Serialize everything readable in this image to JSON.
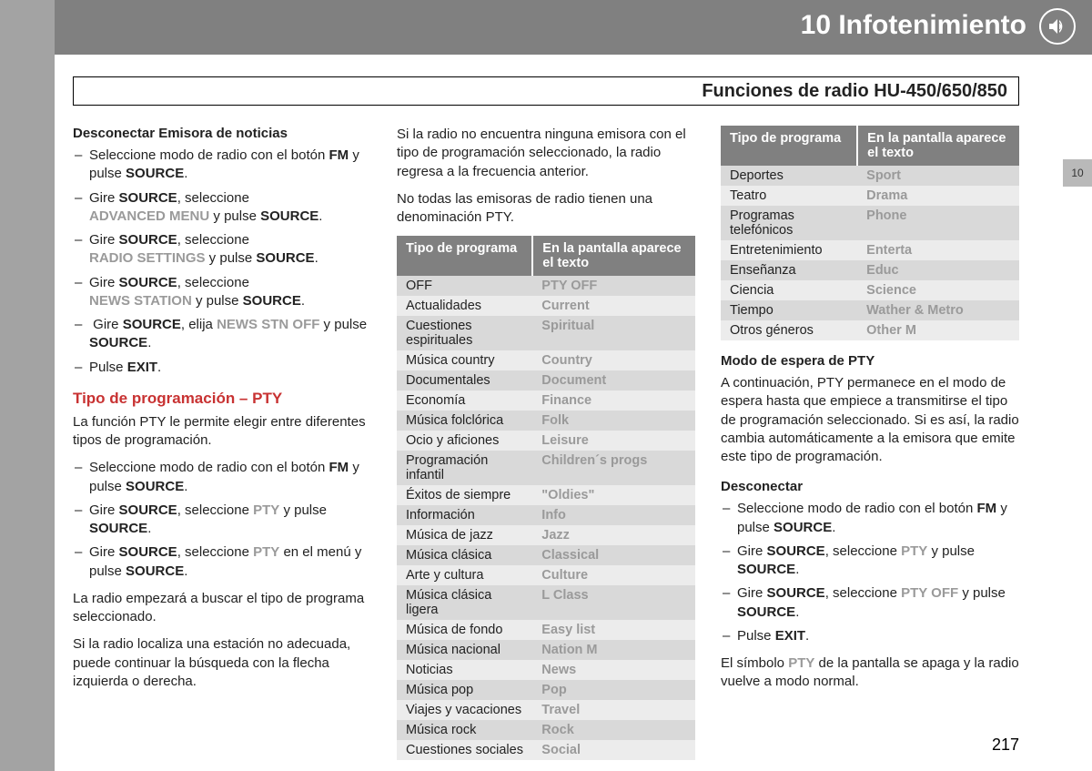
{
  "header": {
    "chapter": "10 Infotenimiento",
    "tab_label": "10"
  },
  "subtitle": "Funciones de radio HU-450/650/850",
  "page_number": "217",
  "table_headers": {
    "type": "Tipo de programa",
    "display": "En la pantalla aparece el texto"
  },
  "col1": {
    "h_disconnect_news": "Desconectar Emisora de noticias",
    "h_pty": "Tipo de programación – PTY",
    "p_pty_desc": "La función PTY le permite elegir entre diferentes tipos de programación.",
    "p_search": "La radio empezará a buscar el tipo de programa seleccionado.",
    "p_continue": "Si la radio localiza una estación no adecuada, puede continuar la búsqueda con la flecha izquierda o derecha."
  },
  "col2": {
    "p_no_match": "Si la radio no encuentra ninguna emisora con el tipo de programación seleccionado, la radio regresa a la frecuencia anterior.",
    "p_not_all": "No todas las emisoras de radio tienen una denominación PTY."
  },
  "col3": {
    "h_standby": "Modo de espera de PTY",
    "p_standby": "A continuación, PTY permanece en el modo de espera hasta que empiece a transmitirse el tipo de programación seleccionado. Si es así, la radio cambia automáticamente a la emisora que emite este tipo de programación.",
    "h_disconnect": "Desconectar"
  },
  "pty_main": [
    {
      "t": "OFF",
      "d": "PTY OFF"
    },
    {
      "t": "Actualidades",
      "d": "Current"
    },
    {
      "t": "Cuestiones espirituales",
      "d": "Spiritual"
    },
    {
      "t": "Música country",
      "d": "Country"
    },
    {
      "t": "Documentales",
      "d": "Document"
    },
    {
      "t": "Economía",
      "d": "Finance"
    },
    {
      "t": "Música folclórica",
      "d": "Folk"
    },
    {
      "t": "Ocio y aficiones",
      "d": "Leisure"
    },
    {
      "t": "Programación infantil",
      "d": "Children´s progs"
    },
    {
      "t": "Éxitos de siempre",
      "d": "\"Oldies\""
    },
    {
      "t": "Información",
      "d": "Info"
    },
    {
      "t": "Música de jazz",
      "d": "Jazz"
    },
    {
      "t": "Música clásica",
      "d": "Classical"
    },
    {
      "t": "Arte y cultura",
      "d": "Culture"
    },
    {
      "t": "Música clásica ligera",
      "d": "L Class"
    },
    {
      "t": "Música de fondo",
      "d": "Easy list"
    },
    {
      "t": "Música nacional",
      "d": "Nation M"
    },
    {
      "t": "Noticias",
      "d": "News"
    },
    {
      "t": "Música pop",
      "d": "Pop"
    },
    {
      "t": "Viajes y vacaciones",
      "d": "Travel"
    },
    {
      "t": "Música rock",
      "d": "Rock"
    },
    {
      "t": "Cuestiones sociales",
      "d": "Social"
    }
  ],
  "pty_side": [
    {
      "t": "Deportes",
      "d": "Sport"
    },
    {
      "t": "Teatro",
      "d": "Drama"
    },
    {
      "t": "Programas telefónicos",
      "d": "Phone"
    },
    {
      "t": "Entretenimiento",
      "d": "Enterta"
    },
    {
      "t": "Enseñanza",
      "d": "Educ"
    },
    {
      "t": "Ciencia",
      "d": "Science"
    },
    {
      "t": "Tiempo",
      "d": "Wather & Metro"
    },
    {
      "t": "Otros géneros",
      "d": "Other M"
    }
  ],
  "words": {
    "SOURCE": "SOURCE",
    "FM": "FM",
    "EXIT": "EXIT",
    "ADVANCED_MENU": "ADVANCED MENU",
    "RADIO_SETTINGS": "RADIO SETTINGS",
    "NEWS_STATION": "NEWS STATION",
    "NEWS_STN_OFF": "NEWS STN OFF",
    "PTY": "PTY",
    "PTY_OFF": "PTY OFF",
    "sel_radio_pre": "Seleccione modo de radio con el botón ",
    "and_press": " y pulse ",
    "gire": "Gire ",
    "seleccione": ", seleccione ",
    "elija": ", elija ",
    "en_menu": " en el menú y pulse ",
    "pulse": "Pulse ",
    "period": ".",
    "y_newline_pulse": " y pulse ",
    "symbol_off": "El símbolo ",
    "symbol_off_tail": " de la pantalla se apaga y la radio vuelve a modo normal."
  }
}
